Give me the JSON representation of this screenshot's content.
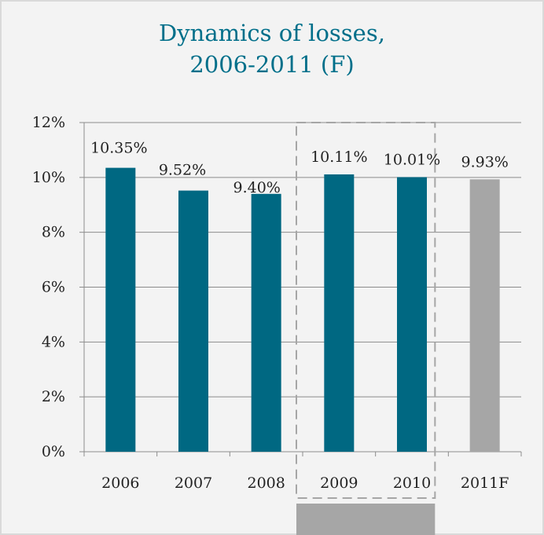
{
  "title_line1": "Dynamics of losses,",
  "title_line2": "2006-2011 (F)",
  "colors": {
    "actual": "#006882",
    "forecast": "#a6a6a6",
    "title": "#006f8a",
    "highlight_box": "#a6a6a6"
  },
  "chart_data": {
    "type": "bar",
    "title": "Dynamics of losses, 2006-2011 (F)",
    "categories": [
      "2006",
      "2007",
      "2008",
      "2009",
      "2010",
      "2011F"
    ],
    "values": [
      10.35,
      9.52,
      9.4,
      10.11,
      10.01,
      9.93
    ],
    "data_labels": [
      "10.35%",
      "9.52%",
      "9.40%",
      "10.11%",
      "10.01%",
      "9.93%"
    ],
    "bar_kind": [
      "actual",
      "actual",
      "actual",
      "actual",
      "actual",
      "forecast"
    ],
    "ylim": [
      0,
      12
    ],
    "y_ticks": [
      0,
      2,
      4,
      6,
      8,
      10,
      12
    ],
    "y_tick_labels": [
      "0%",
      "2%",
      "4%",
      "6%",
      "8%",
      "10%",
      "12%"
    ],
    "grid": true,
    "highlight": {
      "categories": [
        "2009",
        "2010"
      ],
      "style": "dashed-box"
    }
  }
}
